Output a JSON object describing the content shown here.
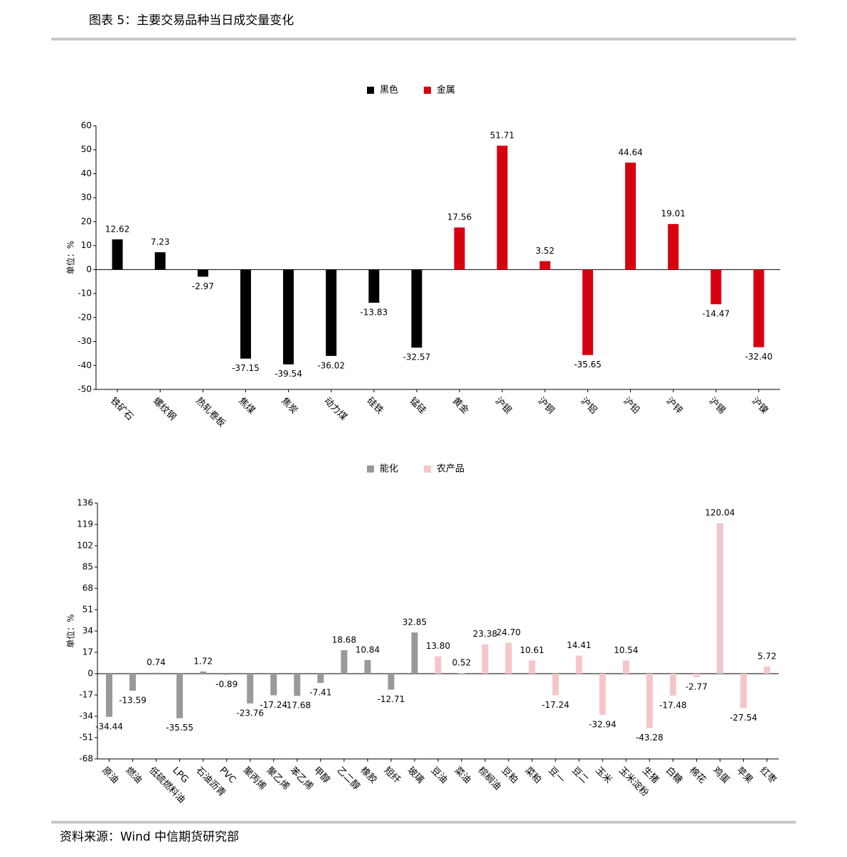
{
  "header": {
    "title": "图表 5：主要交易品种当日成交量变化"
  },
  "footer": {
    "source": "资料来源：Wind 中信期货研究部"
  },
  "chart_data": [
    {
      "type": "bar",
      "y_label": "单位：%",
      "legend": "top",
      "categories": [
        "铁矿石",
        "螺纹钢",
        "热轧卷板",
        "焦煤",
        "焦炭",
        "动力煤",
        "硅铁",
        "锰硅",
        "黄金",
        "沪银",
        "沪铜",
        "沪铝",
        "沪铅",
        "沪锌",
        "沪锡",
        "沪镍"
      ],
      "series": [
        {
          "name": "黑色",
          "color": "#000000",
          "values": [
            12.62,
            7.23,
            -2.97,
            -37.15,
            -39.54,
            -36.02,
            -13.83,
            -32.57,
            null,
            null,
            null,
            null,
            null,
            null,
            null,
            null
          ],
          "value_labels": [
            "12.62",
            "7.23",
            "-2.97",
            "-37.15",
            "-39.54",
            "-36.02",
            "-13.83",
            "-32.57",
            null,
            null,
            null,
            null,
            null,
            null,
            null,
            null
          ]
        },
        {
          "name": "金属",
          "color": "#d7000f",
          "values": [
            null,
            null,
            null,
            null,
            null,
            null,
            null,
            null,
            17.56,
            51.71,
            3.52,
            -35.65,
            44.64,
            19.01,
            -14.47,
            -32.4
          ],
          "value_labels": [
            null,
            null,
            null,
            null,
            null,
            null,
            null,
            null,
            "17.56",
            "51.71",
            "3.52",
            "-35.65",
            "44.64",
            "19.01",
            "-14.47",
            "-32.40"
          ]
        }
      ],
      "ylim": [
        -50,
        60
      ],
      "yticks": [
        -50,
        -40,
        -30,
        -20,
        -10,
        0,
        10,
        20,
        30,
        40,
        50,
        60
      ]
    },
    {
      "type": "bar",
      "y_label": "单位：%",
      "legend": "top",
      "categories": [
        "原油",
        "燃油",
        "低硫燃料油",
        "LPG",
        "石油沥青",
        "PVC",
        "聚丙烯",
        "聚乙烯",
        "苯乙烯",
        "甲醇",
        "乙二醇",
        "橡胶",
        "短纤",
        "玻璃",
        "豆油",
        "菜油",
        "棕榈油",
        "豆粕",
        "菜粕",
        "豆一",
        "豆二",
        "玉米",
        "玉米淀粉",
        "生猪",
        "白糖",
        "棉花",
        "鸡蛋",
        "苹果",
        "红枣"
      ],
      "series": [
        {
          "name": "能化",
          "color": "#999999",
          "values": [
            -34.44,
            -13.59,
            0.74,
            -35.55,
            1.72,
            -0.89,
            -23.76,
            -17.24,
            -17.68,
            -7.41,
            18.68,
            10.84,
            -12.71,
            32.85,
            null,
            null,
            null,
            null,
            null,
            null,
            null,
            null,
            null,
            null,
            null,
            null,
            null,
            null,
            null
          ],
          "value_labels": [
            "-34.44",
            "-13.59",
            "0.74",
            "-35.55",
            "1.72",
            "-0.89",
            "-23.76",
            "-17.24",
            "-17.68",
            "-7.41",
            "18.68",
            "10.84",
            "-12.71",
            "32.85",
            null,
            null,
            null,
            null,
            null,
            null,
            null,
            null,
            null,
            null,
            null,
            null,
            null,
            null,
            null
          ]
        },
        {
          "name": "农产品",
          "color": "#f4c6c9",
          "values": [
            null,
            null,
            null,
            null,
            null,
            null,
            null,
            null,
            null,
            null,
            null,
            null,
            null,
            null,
            13.8,
            0.52,
            23.38,
            24.7,
            10.61,
            -17.24,
            14.41,
            -32.94,
            10.54,
            -43.28,
            -17.48,
            -2.77,
            120.04,
            -27.54,
            5.72
          ],
          "value_labels": [
            null,
            null,
            null,
            null,
            null,
            null,
            null,
            null,
            null,
            null,
            null,
            null,
            null,
            null,
            "13.80",
            "0.52",
            "23.38",
            "24.70",
            "10.61",
            "-17.24",
            "14.41",
            "-32.94",
            "10.54",
            "-43.28",
            "-17.48",
            "-2.77",
            "120.04",
            "-27.54",
            "5.72"
          ]
        }
      ],
      "ylim": [
        -68,
        136
      ],
      "yticks": [
        -68,
        -51,
        -34,
        -17,
        0,
        17,
        34,
        51,
        68,
        85,
        102,
        119,
        136
      ]
    }
  ]
}
